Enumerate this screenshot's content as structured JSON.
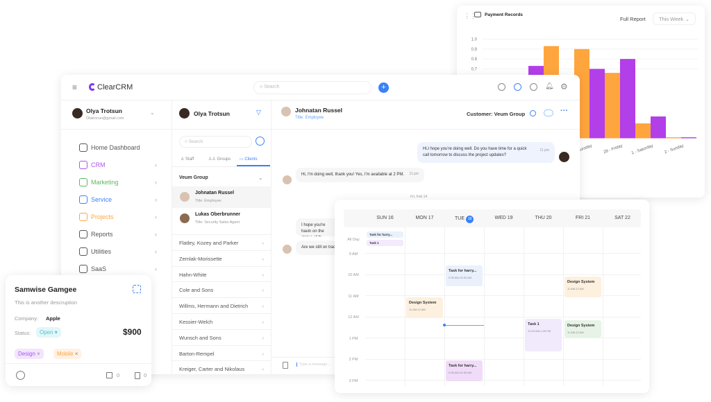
{
  "chart_panel": {
    "title": "Payment Records",
    "full_report": "Full Report",
    "range": "This Week"
  },
  "chart_data": {
    "type": "bar",
    "title": "Payment Records",
    "categories": [
      "",
      "",
      "",
      "- Thursday",
      "28 - Friday",
      "1 - Saturday",
      "2 - Sunday"
    ],
    "series": [
      {
        "color": "#ffa53d",
        "values": [
          null,
          null,
          0.93,
          0.9,
          0.66,
          0.15,
          0.01
        ]
      },
      {
        "color": "#b23fe8",
        "values": [
          null,
          0.73,
          null,
          0.7,
          0.8,
          0.22,
          0.01
        ]
      }
    ],
    "yticks": [
      "0.7",
      "0.8",
      "0.9",
      "1.0"
    ],
    "ylim": [
      0,
      1
    ],
    "grid": true
  },
  "app": {
    "brand": "ClearCRM",
    "search_placeholder": "Search"
  },
  "user": {
    "name": "Olya Trotsun",
    "email": "Olatrocun@gmail.com"
  },
  "nav": [
    {
      "label": "Home Dashboard",
      "color": "#555"
    },
    {
      "label": "CRM",
      "color": "#a855f7"
    },
    {
      "label": "Marketing",
      "color": "#5cb85c"
    },
    {
      "label": "Service",
      "color": "#3b82f6"
    },
    {
      "label": "Projects",
      "color": "#ffa53d"
    },
    {
      "label": "Reports",
      "color": "#555"
    },
    {
      "label": "Utilities",
      "color": "#555"
    },
    {
      "label": "SaaS",
      "color": "#555"
    }
  ],
  "contacts": {
    "user": "Olya Trotsun",
    "search_placeholder": "Search",
    "tabs": [
      "Staff",
      "Groups",
      "Clients"
    ],
    "group": "Veum Group",
    "members": [
      {
        "name": "Johnatan Russel",
        "title": "Title: Employee"
      },
      {
        "name": "Lukas Oberbrunner",
        "title": "Title: Security Sales Agent"
      }
    ],
    "clients": [
      "Flatley, Kozey and Parker",
      "Zemlak-Morissette",
      "Hahn-White",
      "Cole and Sons",
      "Willms, Hermann and Dietrich",
      "Kessier-Welch",
      "Wunsch and Sons",
      "Barton-Rempel",
      "Kreiger, Carter and Nikolaus"
    ]
  },
  "chat": {
    "name": "Johnatan Russel",
    "title": "Title: Employee",
    "customer": "Customer: Veum Group",
    "messages": [
      {
        "text": "Hi,I hope you're doing well. Do you have time for a quick call tomorrow to discuss the project updates?",
        "time": "11 pm"
      },
      {
        "text": "Hi, I'm doing well, thank you! Yes, I'm available at 2 PM.",
        "time": "11 pm"
      },
      {
        "text": "I hope you're havin on the status of th"
      },
      {
        "text": "Are we still on trac"
      }
    ],
    "date_sep": "Fri, Feb 14",
    "input_placeholder": "Type a message..."
  },
  "card": {
    "name": "Samwise Gamgee",
    "description": "This is another descruption",
    "company_label": "Company:",
    "company": "Apple",
    "status_label": "Status:",
    "status": "Open",
    "amount": "$900",
    "tags": [
      "Design",
      "Mobile"
    ],
    "links": "0",
    "files": "0"
  },
  "calendar": {
    "days": [
      "SUN 16",
      "MON 17",
      "TUE",
      "WED 19",
      "THU 20",
      "FRI 21",
      "SAT 22"
    ],
    "today": "18",
    "allday": "All Day",
    "times": [
      "9 AM",
      "10 AM",
      "11 AM",
      "12 AM",
      "1 PM",
      "2 PM",
      "3 PM"
    ],
    "allday_events": [
      "Task for harry...",
      "Task 1"
    ],
    "events": [
      {
        "title": "Task for harry...",
        "time": "9:30 AM-10:30 AM"
      },
      {
        "title": "Design System",
        "time": "11 AM-12 AM"
      },
      {
        "title": "Design System",
        "time": "11 AM-12 AM"
      },
      {
        "title": "Task 1",
        "time": "12:00 AM-1:30 PM"
      },
      {
        "title": "Design System",
        "time": "11 AM-12 AM"
      },
      {
        "title": "Task for harry...",
        "time": "9:30 AM-10:30 AM"
      }
    ]
  }
}
